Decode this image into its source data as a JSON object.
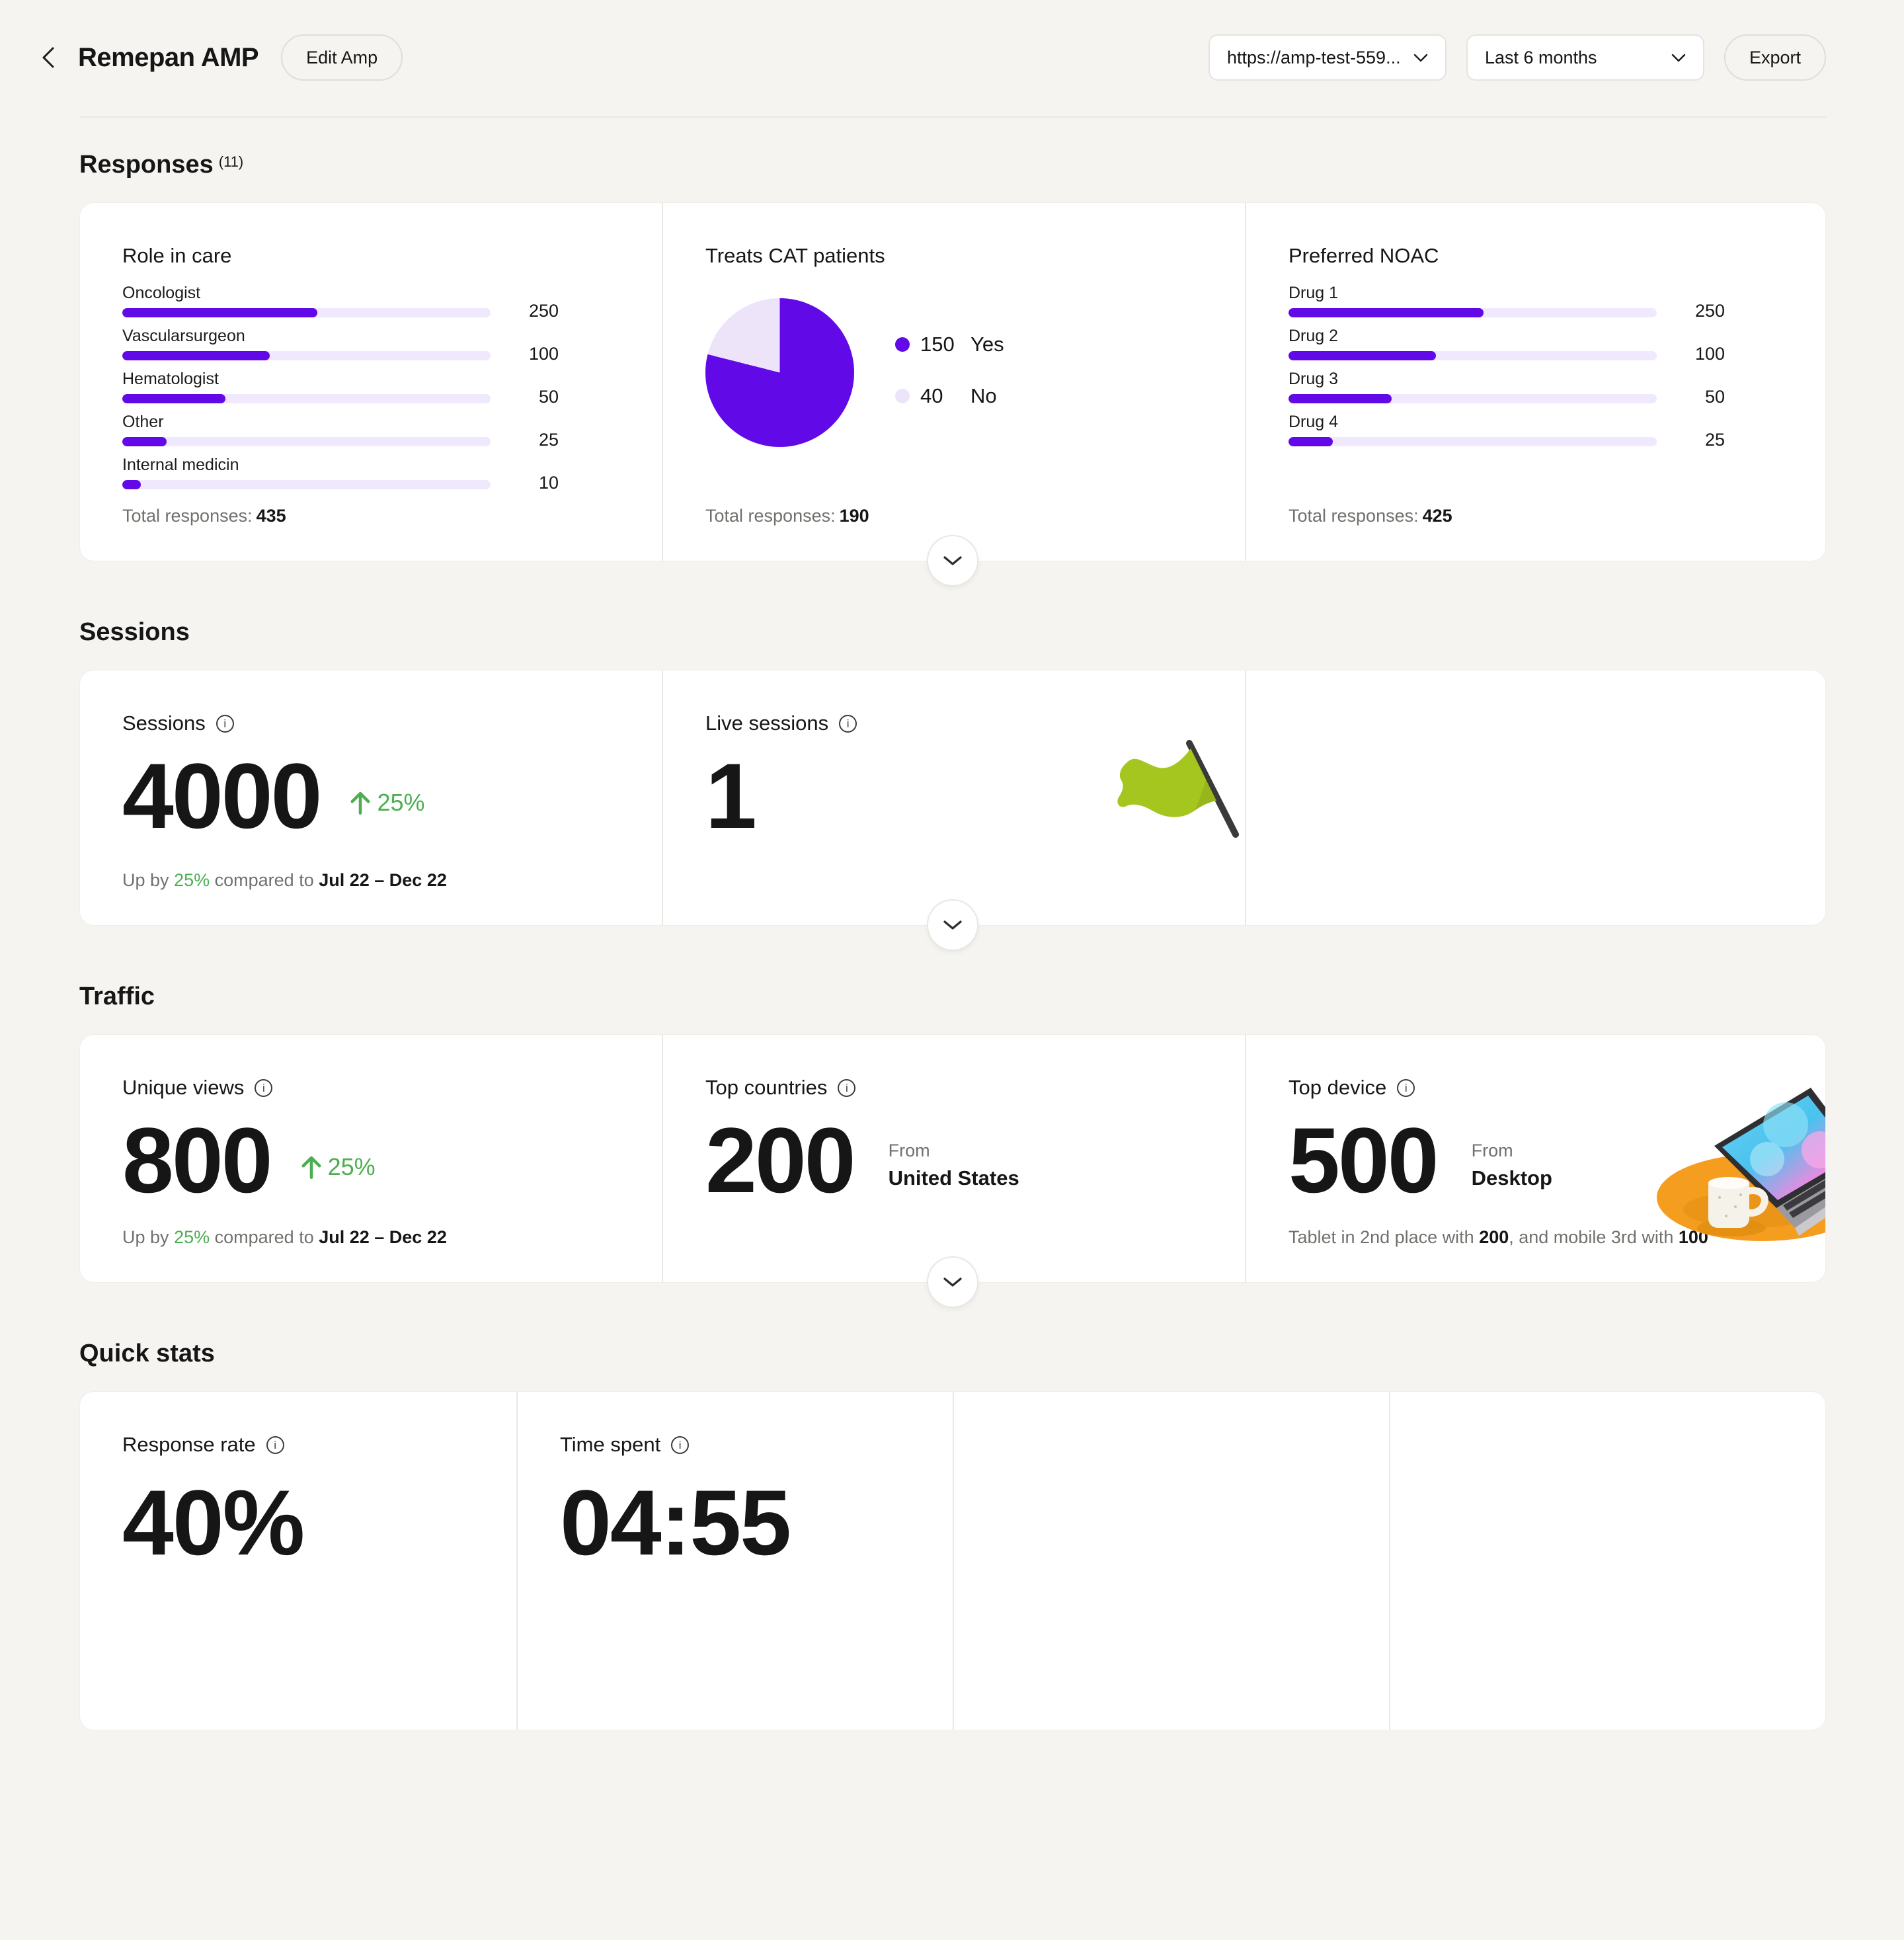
{
  "header": {
    "title": "Remepan AMP",
    "edit_button": "Edit Amp",
    "url_select": "https://amp-test-559...",
    "range_select": "Last 6 months",
    "export_button": "Export"
  },
  "colors": {
    "accent": "#6209E8",
    "accent_track": "#F0E8FC",
    "pie_no": "#EDE4FA",
    "green": "#4CAE50",
    "flag_green": "#A5C51F"
  },
  "responses": {
    "heading": "Responses",
    "count_note": "(11)",
    "role_in_care": {
      "title": "Role in care",
      "bars": [
        {
          "label": "Oncologist",
          "value": "250",
          "fill_pct": 53
        },
        {
          "label": "Vascularsurgeon",
          "value": "100",
          "fill_pct": 40
        },
        {
          "label": "Hematologist",
          "value": "50",
          "fill_pct": 28
        },
        {
          "label": "Other",
          "value": "25",
          "fill_pct": 12
        },
        {
          "label": "Internal medicin",
          "value": "10",
          "fill_pct": 5
        }
      ],
      "total_label": "Total responses:",
      "total_value": "435"
    },
    "treats_cat_patients": {
      "title": "Treats CAT patients",
      "pie": {
        "yes": 150,
        "no": 40
      },
      "legend": [
        {
          "value": "150",
          "label": "Yes"
        },
        {
          "value": "40",
          "label": "No"
        }
      ],
      "total_label": "Total responses:",
      "total_value": "190"
    },
    "preferred_noac": {
      "title": "Preferred NOAC",
      "bars": [
        {
          "label": "Drug 1",
          "value": "250",
          "fill_pct": 53
        },
        {
          "label": "Drug 2",
          "value": "100",
          "fill_pct": 40
        },
        {
          "label": "Drug 3",
          "value": "50",
          "fill_pct": 28
        },
        {
          "label": "Drug 4",
          "value": "25",
          "fill_pct": 12
        }
      ],
      "total_label": "Total responses:",
      "total_value": "425"
    }
  },
  "sessions": {
    "heading": "Sessions",
    "sessions_card": {
      "title": "Sessions",
      "value": "4000",
      "delta": "25%",
      "caption": {
        "p1": "Up by",
        "delta": "25%",
        "p2": "compared to",
        "range": "Jul 22 – Dec 22"
      }
    },
    "live_card": {
      "title": "Live sessions",
      "value": "1"
    }
  },
  "traffic": {
    "heading": "Traffic",
    "unique_views": {
      "title": "Unique views",
      "value": "800",
      "delta": "25%",
      "caption": {
        "p1": "Up by",
        "delta": "25%",
        "p2": "compared to",
        "range": "Jul 22 – Dec 22"
      }
    },
    "top_countries": {
      "title": "Top countries",
      "value": "200",
      "from_label": "From",
      "from_value": "United States"
    },
    "top_device": {
      "title": "Top device",
      "value": "500",
      "from_label": "From",
      "from_value": "Desktop",
      "caption": {
        "p1": "Tablet in 2nd place with ",
        "v1": "200",
        "p2": ", and mobile 3rd with ",
        "v2": "100"
      }
    }
  },
  "quick_stats": {
    "heading": "Quick stats",
    "response_rate": {
      "title": "Response rate",
      "value": "40%"
    },
    "time_spent": {
      "title": "Time spent",
      "value": "04:55"
    }
  },
  "chart_data": [
    {
      "type": "bar",
      "title": "Role in care",
      "categories": [
        "Oncologist",
        "Vascularsurgeon",
        "Hematologist",
        "Other",
        "Internal medicin"
      ],
      "values": [
        250,
        100,
        50,
        25,
        10
      ],
      "total": 435
    },
    {
      "type": "pie",
      "title": "Treats CAT patients",
      "categories": [
        "Yes",
        "No"
      ],
      "values": [
        150,
        40
      ],
      "total": 190
    },
    {
      "type": "bar",
      "title": "Preferred NOAC",
      "categories": [
        "Drug 1",
        "Drug 2",
        "Drug 3",
        "Drug 4"
      ],
      "values": [
        250,
        100,
        50,
        25
      ],
      "total": 425
    }
  ]
}
